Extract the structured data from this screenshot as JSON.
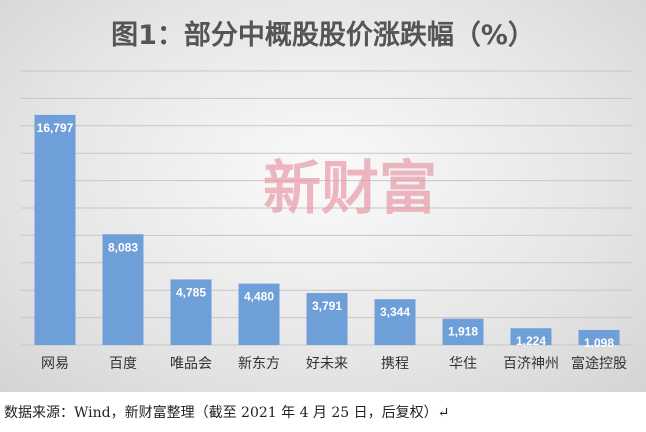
{
  "chart_data": {
    "type": "bar",
    "title": "图1：部分中概股股价涨跌幅（%）",
    "categories": [
      "网易",
      "百度",
      "唯品会",
      "新东方",
      "好未来",
      "携程",
      "华住",
      "百济神州",
      "富途控股"
    ],
    "values": [
      16797,
      8083,
      4785,
      4480,
      3791,
      3344,
      1918,
      1224,
      1098
    ],
    "value_labels": [
      "16,797",
      "8,083",
      "4,785",
      "4,480",
      "3,791",
      "3,344",
      "1,918",
      "1,224",
      "1,098"
    ],
    "ylim": [
      0,
      20000
    ],
    "grid": true,
    "bar_color": "#6f9fd8"
  },
  "watermark": "新财富",
  "source_note": "数据来源：Wind，新财富整理（截至 2021 年 4 月 25 日，后复权）↵"
}
